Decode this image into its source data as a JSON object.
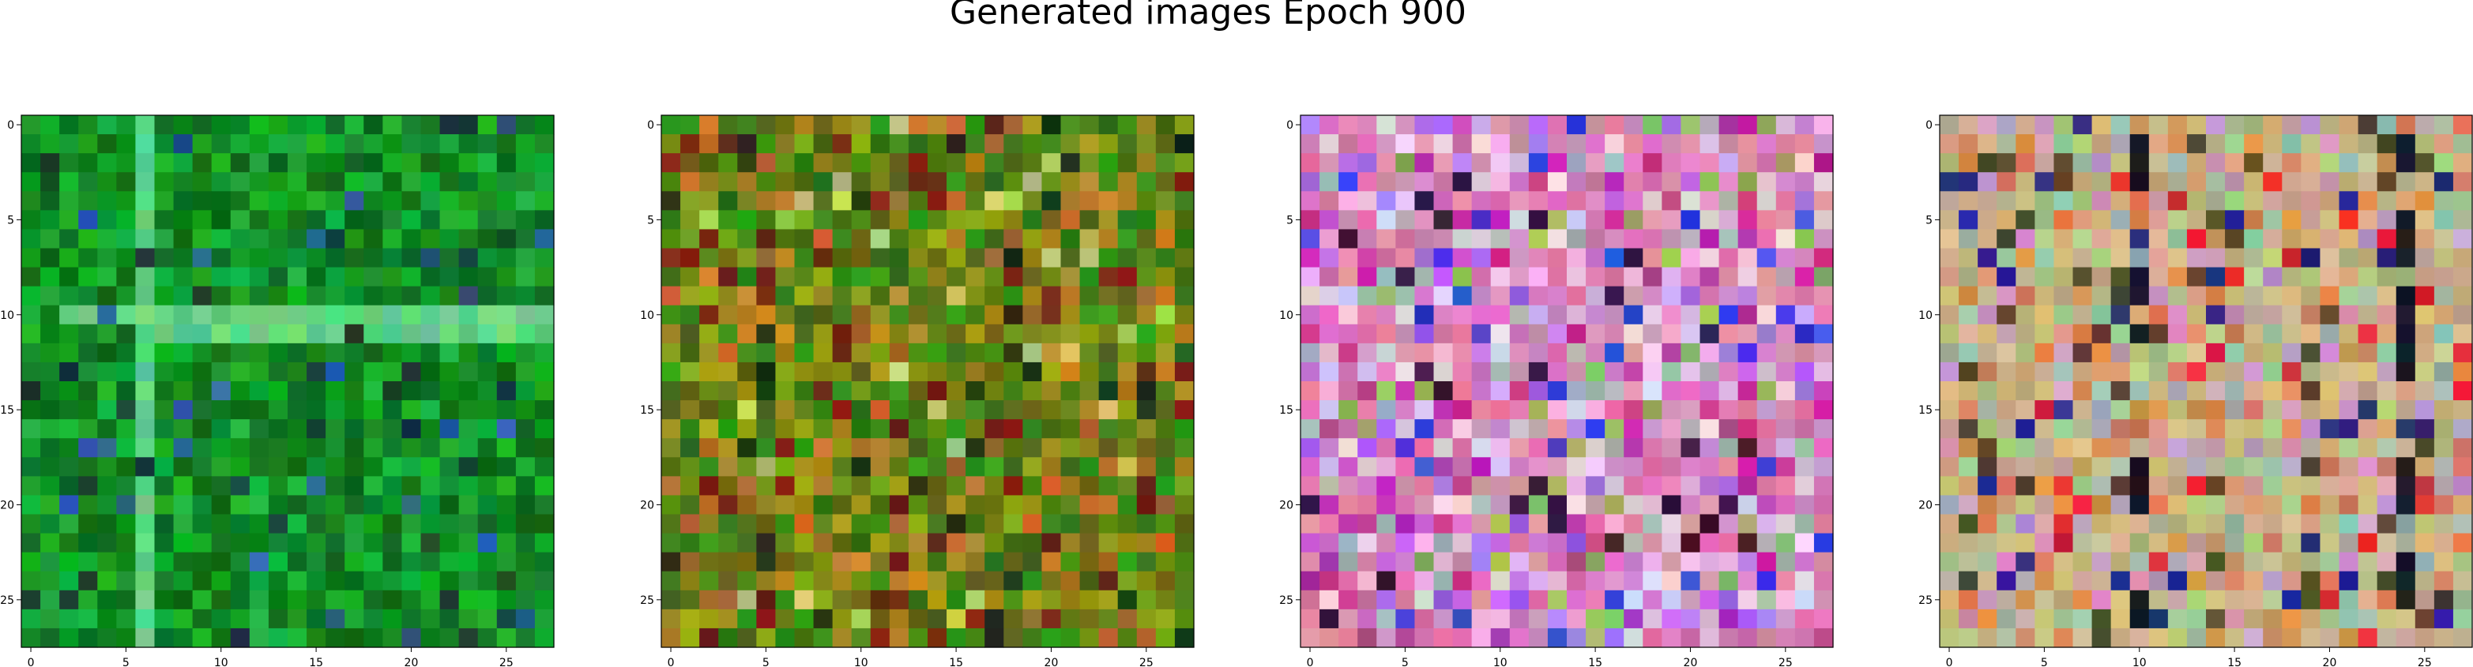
{
  "title": "Generated images Epoch 900",
  "chart_data": [
    {
      "type": "heatmap",
      "palette": "green",
      "grid_size": [
        28,
        28
      ],
      "xlim": [
        -0.5,
        27.5
      ],
      "ylim": [
        27.5,
        -0.5
      ],
      "x_ticks": [
        0,
        5,
        10,
        15,
        20,
        25
      ],
      "y_ticks": [
        0,
        5,
        10,
        15,
        20,
        25
      ],
      "x_tick_labels": [
        "0",
        "5",
        "10",
        "15",
        "20",
        "25"
      ],
      "y_tick_labels": [
        "0",
        "5",
        "10",
        "15",
        "20",
        "25"
      ]
    },
    {
      "type": "heatmap",
      "palette": "olive",
      "grid_size": [
        28,
        28
      ],
      "xlim": [
        -0.5,
        27.5
      ],
      "ylim": [
        27.5,
        -0.5
      ],
      "x_ticks": [
        0,
        5,
        10,
        15,
        20,
        25
      ],
      "y_ticks": [
        0,
        5,
        10,
        15,
        20,
        25
      ],
      "x_tick_labels": [
        "0",
        "5",
        "10",
        "15",
        "20",
        "25"
      ],
      "y_tick_labels": [
        "0",
        "5",
        "10",
        "15",
        "20",
        "25"
      ]
    },
    {
      "type": "heatmap",
      "palette": "pink",
      "grid_size": [
        28,
        28
      ],
      "xlim": [
        -0.5,
        27.5
      ],
      "ylim": [
        27.5,
        -0.5
      ],
      "x_ticks": [
        0,
        5,
        10,
        15,
        20,
        25
      ],
      "y_ticks": [
        0,
        5,
        10,
        15,
        20,
        25
      ],
      "x_tick_labels": [
        "0",
        "5",
        "10",
        "15",
        "20",
        "25"
      ],
      "y_tick_labels": [
        "0",
        "5",
        "10",
        "15",
        "20",
        "25"
      ]
    },
    {
      "type": "heatmap",
      "palette": "beige",
      "grid_size": [
        28,
        28
      ],
      "xlim": [
        -0.5,
        27.5
      ],
      "ylim": [
        27.5,
        -0.5
      ],
      "x_ticks": [
        0,
        5,
        10,
        15,
        20,
        25
      ],
      "y_ticks": [
        0,
        5,
        10,
        15,
        20,
        25
      ],
      "x_tick_labels": [
        "0",
        "5",
        "10",
        "15",
        "20",
        "25"
      ],
      "y_tick_labels": [
        "0",
        "5",
        "10",
        "15",
        "20",
        "25"
      ]
    }
  ]
}
